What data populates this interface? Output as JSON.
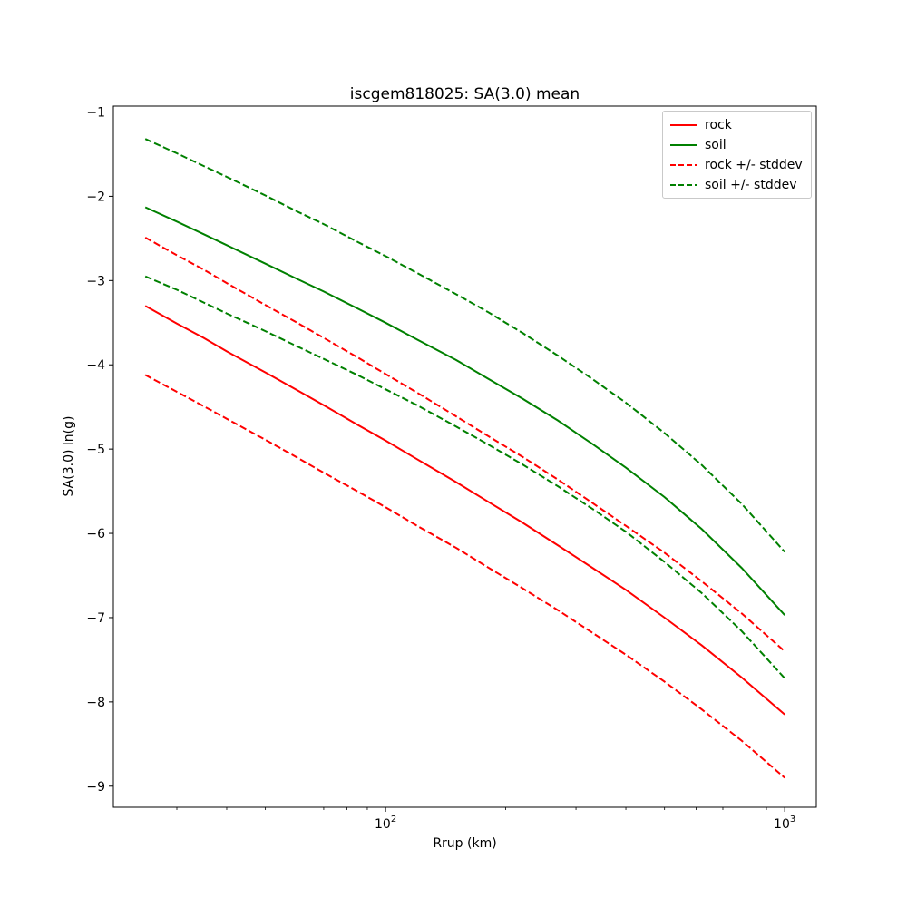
{
  "chart_data": {
    "type": "line",
    "title": "iscgem818025: SA(3.0) mean",
    "xlabel": "Rrup (km)",
    "ylabel": "SA(3.0) ln(g)",
    "x_scale": "log",
    "grid": false,
    "xlim": [
      20.8,
      1200
    ],
    "ylim": [
      -9.25,
      -0.93
    ],
    "x_major_ticks": [
      {
        "value": 100,
        "mantissa": "10",
        "exponent": "2"
      },
      {
        "value": 1000,
        "mantissa": "10",
        "exponent": "3"
      }
    ],
    "x_minor_ticks": [
      30,
      40,
      50,
      60,
      70,
      80,
      90,
      200,
      300,
      400,
      500,
      600,
      700,
      800,
      900
    ],
    "y_ticks": [
      {
        "value": -1,
        "label": "−1"
      },
      {
        "value": -2,
        "label": "−2"
      },
      {
        "value": -3,
        "label": "−3"
      },
      {
        "value": -4,
        "label": "−4"
      },
      {
        "value": -5,
        "label": "−5"
      },
      {
        "value": -6,
        "label": "−6"
      },
      {
        "value": -7,
        "label": "−7"
      },
      {
        "value": -8,
        "label": "−8"
      },
      {
        "value": -9,
        "label": "−9"
      }
    ],
    "x": [
      25,
      30,
      35,
      40,
      50,
      60,
      70,
      85,
      100,
      120,
      150,
      180,
      220,
      270,
      330,
      400,
      500,
      620,
      780,
      1000
    ],
    "series": [
      {
        "name": "rock mean",
        "color": "#ff0000",
        "linestyle": "solid",
        "values": [
          -3.3,
          -3.51,
          -3.68,
          -3.84,
          -4.09,
          -4.3,
          -4.48,
          -4.71,
          -4.9,
          -5.12,
          -5.39,
          -5.62,
          -5.87,
          -6.14,
          -6.41,
          -6.67,
          -7.0,
          -7.33,
          -7.71,
          -8.15
        ]
      },
      {
        "name": "soil mean",
        "color": "#008000",
        "linestyle": "solid",
        "values": [
          -2.13,
          -2.3,
          -2.45,
          -2.58,
          -2.8,
          -2.98,
          -3.13,
          -3.33,
          -3.5,
          -3.7,
          -3.94,
          -4.16,
          -4.4,
          -4.66,
          -4.94,
          -5.22,
          -5.57,
          -5.95,
          -6.41,
          -6.97
        ]
      },
      {
        "name": "rock plus stddev",
        "color": "#ff0000",
        "linestyle": "dashed",
        "values": [
          -2.49,
          -2.7,
          -2.87,
          -3.03,
          -3.29,
          -3.5,
          -3.68,
          -3.91,
          -4.11,
          -4.33,
          -4.61,
          -4.84,
          -5.09,
          -5.36,
          -5.64,
          -5.91,
          -6.23,
          -6.57,
          -6.95,
          -7.4
        ]
      },
      {
        "name": "rock minus stddev",
        "color": "#ff0000",
        "linestyle": "dashed",
        "values": [
          -4.12,
          -4.32,
          -4.49,
          -4.64,
          -4.89,
          -5.1,
          -5.28,
          -5.5,
          -5.69,
          -5.91,
          -6.17,
          -6.4,
          -6.65,
          -6.91,
          -7.18,
          -7.44,
          -7.76,
          -8.09,
          -8.46,
          -8.9
        ]
      },
      {
        "name": "soil plus stddev",
        "color": "#008000",
        "linestyle": "dashed",
        "values": [
          -1.32,
          -1.49,
          -1.64,
          -1.77,
          -1.99,
          -2.18,
          -2.33,
          -2.54,
          -2.71,
          -2.91,
          -3.16,
          -3.37,
          -3.62,
          -3.89,
          -4.17,
          -4.45,
          -4.81,
          -5.19,
          -5.65,
          -6.22
        ]
      },
      {
        "name": "soil minus stddev",
        "color": "#008000",
        "linestyle": "dashed",
        "values": [
          -2.95,
          -3.11,
          -3.26,
          -3.39,
          -3.6,
          -3.78,
          -3.93,
          -4.12,
          -4.29,
          -4.48,
          -4.73,
          -4.94,
          -5.18,
          -5.44,
          -5.71,
          -5.98,
          -6.34,
          -6.71,
          -7.16,
          -7.72
        ]
      }
    ],
    "legend": {
      "location": "upper right",
      "entries": [
        {
          "label": "rock",
          "color": "#ff0000",
          "linestyle": "solid"
        },
        {
          "label": "soil",
          "color": "#008000",
          "linestyle": "solid"
        },
        {
          "label": "rock +/- stddev",
          "color": "#ff0000",
          "linestyle": "dashed"
        },
        {
          "label": "soil +/- stddev",
          "color": "#008000",
          "linestyle": "dashed"
        }
      ]
    }
  }
}
